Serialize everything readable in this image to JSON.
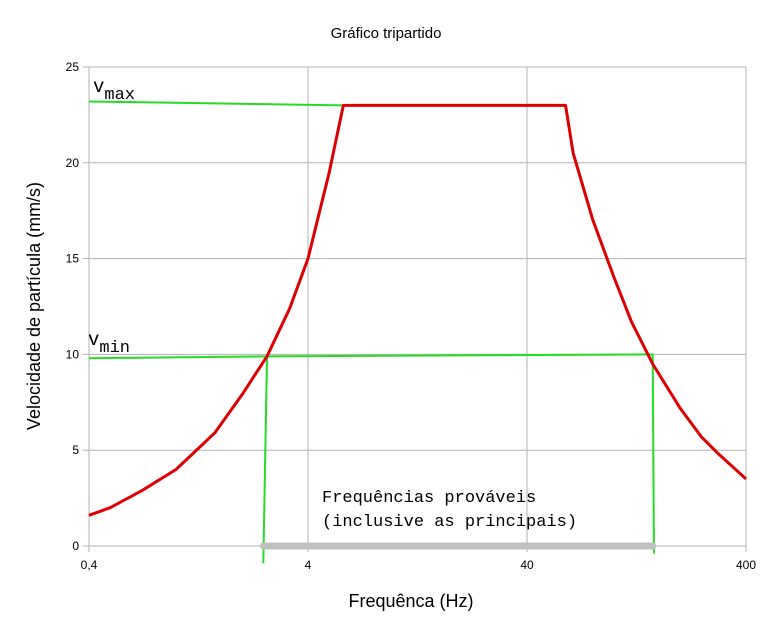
{
  "chart_data": {
    "type": "line",
    "title": "Gráfico tripartido",
    "xlabel": "Frequênca (Hz)",
    "ylabel": "Velocidade de partícula (mm/s)",
    "x_scale": "log",
    "xlim": [
      0.4,
      400
    ],
    "ylim": [
      0,
      25
    ],
    "x_ticks": [
      0.4,
      4,
      40,
      400
    ],
    "x_tick_labels": [
      "0,4",
      "4",
      "40",
      "400"
    ],
    "y_ticks": [
      0,
      5,
      10,
      15,
      20,
      25
    ],
    "grid": true,
    "series": [
      {
        "name": "",
        "color": "#dd0000",
        "x": [
          0.4,
          0.5,
          0.7,
          1.0,
          1.5,
          2.0,
          2.6,
          3.3,
          4.0,
          5.0,
          5.8,
          8,
          20,
          60,
          65,
          80,
          100,
          120,
          150,
          200,
          250,
          300,
          400
        ],
        "y": [
          1.6,
          2.0,
          2.9,
          4.0,
          5.9,
          7.9,
          9.9,
          12.4,
          15.0,
          19.5,
          23.0,
          23.0,
          23.0,
          23.0,
          20.5,
          17.0,
          14.0,
          11.7,
          9.5,
          7.2,
          5.7,
          4.8,
          3.5
        ]
      }
    ],
    "guides": {
      "color": "#22dd22",
      "vmax_line": {
        "x": [
          0.4,
          5.8
        ],
        "y": [
          23.2,
          23.0
        ]
      },
      "vmin_line": {
        "x": [
          0.4,
          2.6,
          150
        ],
        "y": [
          9.8,
          9.9,
          10.0
        ]
      },
      "left_drop": {
        "x": [
          2.6,
          2.5
        ],
        "y": [
          9.9,
          -0.9
        ]
      },
      "right_drop": {
        "x": [
          150,
          152
        ],
        "y": [
          10.0,
          -0.4
        ]
      }
    },
    "range_bar": {
      "x": [
        2.5,
        150
      ],
      "y": 0,
      "color": "#c0c0c0"
    },
    "annotations": {
      "vmax": {
        "base": "v",
        "sub": "max"
      },
      "vmin": {
        "base": "v",
        "sub": "min"
      },
      "range_line1": "Frequências prováveis",
      "range_line2": "(inclusive as principais)"
    }
  }
}
